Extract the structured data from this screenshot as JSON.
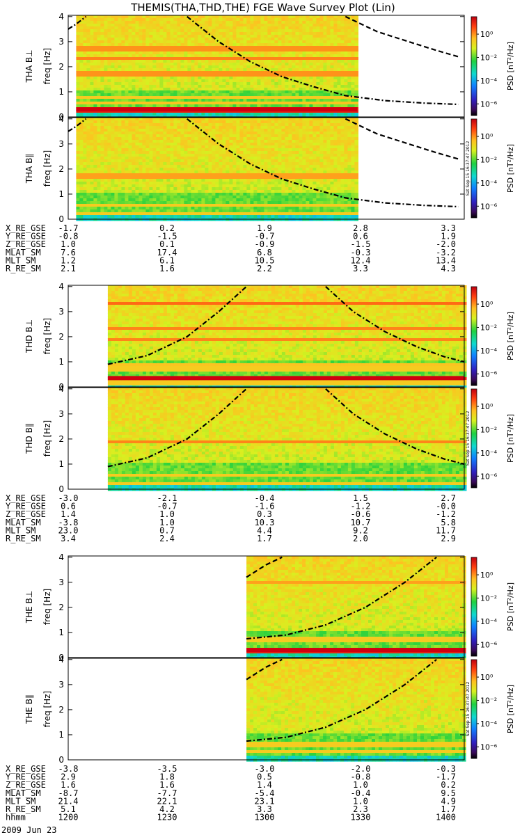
{
  "chart_data": {
    "type": "heatmap",
    "title": "THEMIS(THA,THD,THE) FGE Wave Survey Plot (Lin)",
    "ylabel": "freq [Hz]",
    "yticks": [
      "0",
      "1",
      "2",
      "3",
      "4"
    ],
    "ylim": [
      0,
      4
    ],
    "colorbar_label": "PSD [nT²/Hz]",
    "colorbar_ticks": [
      "10⁰",
      "10⁻²",
      "10⁻⁴",
      "10⁻⁶"
    ],
    "colorbar_exponents": [
      0,
      -2,
      -4,
      -6
    ],
    "stamp": "Sat Sep 15 16:37:47 2012",
    "probes": [
      {
        "id": "THA",
        "data_range": [
          0.02,
          0.73
        ],
        "panels": [
          {
            "label": "THA B⊥",
            "strong_line_hz": 0.3,
            "bands": [
              {
                "f": 0.3,
                "level": 1.0
              },
              {
                "f": 0.55,
                "level": 0.35
              },
              {
                "f": 0.8,
                "level": 0.3
              },
              {
                "f": 1.7,
                "level": 0.55
              },
              {
                "f": 2.3,
                "level": 0.6
              },
              {
                "f": 2.7,
                "level": 0.55
              }
            ]
          },
          {
            "label": "THA B∥",
            "strong_line_hz": null,
            "bands": [
              {
                "f": 0.25,
                "level": 0.3
              },
              {
                "f": 0.55,
                "level": 0.3
              },
              {
                "f": 1.7,
                "level": 0.5
              }
            ]
          }
        ],
        "curves": [
          {
            "style": "dashdot",
            "pts": [
              [
                0.0,
                3.5
              ],
              [
                0.02,
                3.7
              ],
              [
                0.045,
                4.0
              ]
            ]
          },
          {
            "style": "dashdot",
            "pts": [
              [
                0.3,
                4.0
              ],
              [
                0.38,
                3.0
              ],
              [
                0.46,
                2.2
              ],
              [
                0.54,
                1.6
              ],
              [
                0.62,
                1.2
              ],
              [
                0.7,
                0.85
              ],
              [
                0.8,
                0.65
              ],
              [
                0.9,
                0.55
              ],
              [
                0.985,
                0.5
              ]
            ]
          },
          {
            "style": "dash",
            "pts": [
              [
                0.7,
                4.0
              ],
              [
                0.78,
                3.4
              ],
              [
                0.86,
                3.0
              ],
              [
                0.93,
                2.65
              ],
              [
                0.985,
                2.4
              ]
            ]
          }
        ],
        "ephemeris": {
          "labels": [
            "X_RE_GSE",
            "Y_RE_GSE",
            "Z_RE_GSE",
            "MLAT_SM",
            "MLT_SM",
            "R_RE_SM"
          ],
          "rows": [
            [
              "-1.7",
              "0.2",
              "1.9",
              "2.8",
              "3.3"
            ],
            [
              "-0.8",
              "-1.5",
              "-0.7",
              "0.6",
              "1.9"
            ],
            [
              "1.0",
              "0.1",
              "-0.9",
              "-1.5",
              "-2.0"
            ],
            [
              "7.6",
              "17.4",
              "6.8",
              "-0.3",
              "-3.2"
            ],
            [
              "1.2",
              "6.1",
              "10.5",
              "12.4",
              "13.4"
            ],
            [
              "2.1",
              "1.6",
              "2.2",
              "3.3",
              "4.3"
            ]
          ]
        }
      },
      {
        "id": "THD",
        "data_range": [
          0.1,
          1.0
        ],
        "panels": [
          {
            "label": "THD B⊥",
            "strong_line_hz": 0.35,
            "bands": [
              {
                "f": 0.35,
                "level": 1.0
              },
              {
                "f": 0.15,
                "level": 0.3
              },
              {
                "f": 0.7,
                "level": 0.3
              },
              {
                "f": 0.9,
                "level": 0.35
              },
              {
                "f": 1.9,
                "level": 0.6
              },
              {
                "f": 2.3,
                "level": 0.6
              },
              {
                "f": 3.3,
                "level": 0.7
              }
            ]
          },
          {
            "label": "THD B∥",
            "strong_line_hz": null,
            "bands": [
              {
                "f": 0.25,
                "level": 0.3
              },
              {
                "f": 0.55,
                "level": 0.3
              },
              {
                "f": 1.9,
                "level": 0.6
              }
            ]
          }
        ],
        "curves": [
          {
            "style": "dashdot",
            "pts": [
              [
                0.1,
                0.9
              ],
              [
                0.2,
                1.25
              ],
              [
                0.3,
                2.0
              ],
              [
                0.38,
                3.0
              ],
              [
                0.45,
                4.0
              ]
            ]
          },
          {
            "style": "dashdot",
            "pts": [
              [
                0.65,
                4.0
              ],
              [
                0.72,
                3.0
              ],
              [
                0.8,
                2.2
              ],
              [
                0.88,
                1.6
              ],
              [
                0.95,
                1.2
              ],
              [
                1.0,
                1.0
              ]
            ]
          }
        ],
        "ephemeris": {
          "labels": [
            "X_RE_GSE",
            "Y_RE_GSE",
            "Z_RE_GSE",
            "MLAT_SM",
            "MLT_SM",
            "R_RE_SM"
          ],
          "rows": [
            [
              "-3.0",
              "-2.1",
              "-0.4",
              "1.5",
              "2.7"
            ],
            [
              "0.6",
              "-0.7",
              "-1.6",
              "-1.2",
              "-0.0"
            ],
            [
              "1.4",
              "1.0",
              "0.3",
              "-0.6",
              "-1.2"
            ],
            [
              "-3.8",
              "1.0",
              "10.3",
              "10.7",
              "5.8"
            ],
            [
              "23.0",
              "0.7",
              "4.4",
              "9.2",
              "11.7"
            ],
            [
              "3.4",
              "2.4",
              "1.7",
              "2.0",
              "2.9"
            ]
          ]
        }
      },
      {
        "id": "THE",
        "data_range": [
          0.45,
          1.0
        ],
        "panels": [
          {
            "label": "THE B⊥",
            "strong_line_hz": 0.3,
            "bands": [
              {
                "f": 0.3,
                "level": 1.0
              },
              {
                "f": 0.7,
                "level": 0.3
              },
              {
                "f": 3.0,
                "level": 0.5
              }
            ]
          },
          {
            "label": "THE B∥",
            "strong_line_hz": null,
            "bands": [
              {
                "f": 0.35,
                "level": 0.3
              },
              {
                "f": 0.6,
                "level": 0.3
              }
            ]
          }
        ],
        "curves": [
          {
            "style": "dashdot",
            "pts": [
              [
                0.45,
                0.75
              ],
              [
                0.55,
                0.9
              ],
              [
                0.65,
                1.3
              ],
              [
                0.75,
                2.0
              ],
              [
                0.85,
                3.0
              ],
              [
                0.93,
                4.0
              ]
            ]
          },
          {
            "style": "dash",
            "pts": [
              [
                0.45,
                3.2
              ],
              [
                0.5,
                3.7
              ],
              [
                0.54,
                4.0
              ]
            ]
          }
        ],
        "ephemeris": {
          "labels": [
            "X_RE_GSE",
            "Y_RE_GSE",
            "Z_RE_GSE",
            "MLAT_SM",
            "MLT_SM",
            "R_RE_SM",
            "hhmm"
          ],
          "rows": [
            [
              "-3.8",
              "-3.5",
              "-3.0",
              "-2.0",
              "-0.3"
            ],
            [
              "2.9",
              "1.8",
              "0.5",
              "-0.8",
              "-1.7"
            ],
            [
              "1.6",
              "1.6",
              "1.4",
              "1.0",
              "0.2"
            ],
            [
              "-8.7",
              "-7.7",
              "-5.4",
              "-0.4",
              "9.5"
            ],
            [
              "21.4",
              "22.1",
              "23.1",
              "1.0",
              "4.9"
            ],
            [
              "5.1",
              "4.2",
              "3.3",
              "2.3",
              "1.7"
            ],
            [
              "1200",
              "1230",
              "1300",
              "1330",
              "1400"
            ]
          ]
        }
      }
    ],
    "date_label": "2009 Jun 23"
  }
}
